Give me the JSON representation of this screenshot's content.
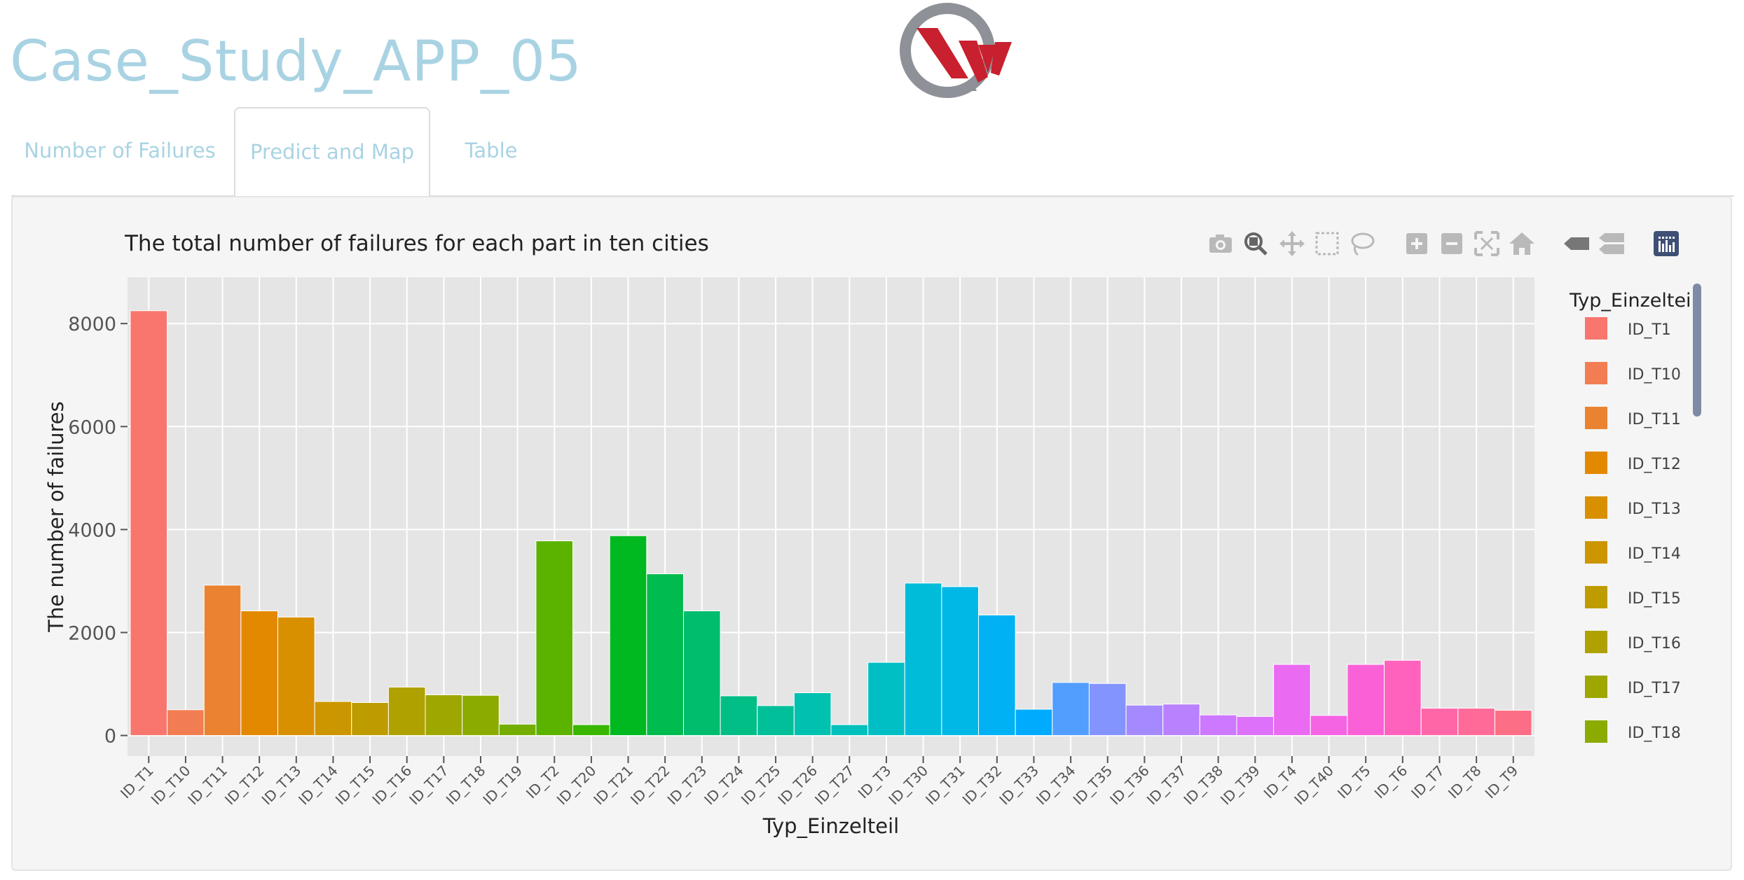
{
  "app": {
    "title": "Case_Study_APP_05"
  },
  "tabs": [
    {
      "label": "Number of Failures",
      "active": false
    },
    {
      "label": "Predict and Map",
      "active": true
    },
    {
      "label": "Table",
      "active": false
    }
  ],
  "modebar": {
    "icons": [
      "camera-icon",
      "zoom-icon",
      "pan-icon",
      "box-select-icon",
      "lasso-icon",
      "zoom-in-icon",
      "zoom-out-icon",
      "autoscale-icon",
      "home-icon",
      "hover-closest-icon",
      "hover-compare-icon",
      "plotly-logo-icon"
    ]
  },
  "colors": {
    "title": "#a9d3e3",
    "plot_bg": "#e5e5e5",
    "panel_bg": "#f5f5f5"
  },
  "chart_data": {
    "type": "bar",
    "title": "The total number of failures for each part in ten cities",
    "xlabel": "Typ_Einzelteil",
    "ylabel": "The number of failures",
    "ylim": [
      -400,
      8900
    ],
    "yticks": [
      0,
      2000,
      4000,
      6000,
      8000
    ],
    "ytick_labels": [
      "0",
      "2000",
      "4000",
      "6000",
      "8000"
    ],
    "grid": true,
    "legend": {
      "title": "Typ_Einzelteil",
      "placement": "right",
      "entries": [
        "ID_T1",
        "ID_T10",
        "ID_T11",
        "ID_T12",
        "ID_T13",
        "ID_T14",
        "ID_T15",
        "ID_T16",
        "ID_T17",
        "ID_T18"
      ]
    },
    "categories": [
      "ID_T1",
      "ID_T10",
      "ID_T11",
      "ID_T12",
      "ID_T13",
      "ID_T14",
      "ID_T15",
      "ID_T16",
      "ID_T17",
      "ID_T18",
      "ID_T19",
      "ID_T2",
      "ID_T20",
      "ID_T21",
      "ID_T22",
      "ID_T23",
      "ID_T24",
      "ID_T25",
      "ID_T26",
      "ID_T27",
      "ID_T3",
      "ID_T30",
      "ID_T31",
      "ID_T32",
      "ID_T33",
      "ID_T34",
      "ID_T35",
      "ID_T36",
      "ID_T37",
      "ID_T38",
      "ID_T39",
      "ID_T4",
      "ID_T40",
      "ID_T5",
      "ID_T6",
      "ID_T7",
      "ID_T8",
      "ID_T9"
    ],
    "values": [
      8250,
      500,
      2920,
      2420,
      2300,
      660,
      640,
      940,
      790,
      780,
      220,
      3780,
      210,
      3880,
      3140,
      2420,
      770,
      580,
      830,
      210,
      1420,
      2960,
      2890,
      2340,
      510,
      1030,
      1010,
      590,
      610,
      400,
      370,
      1380,
      390,
      1380,
      1460,
      530,
      530,
      490
    ],
    "colors": [
      "#F8766D",
      "#F27D52",
      "#EA8331",
      "#E38900",
      "#D89000",
      "#CB9600",
      "#BE9C00",
      "#AFA100",
      "#9EA700",
      "#8BAB00",
      "#74AE00",
      "#5BB300",
      "#39B600",
      "#00B81F",
      "#00BB4E",
      "#00BC6D",
      "#00BE86",
      "#00BF99",
      "#00C0AF",
      "#00C0BC",
      "#00BFC4",
      "#00BCD8",
      "#00B8E5",
      "#00B2F3",
      "#00ABFD",
      "#529EFF",
      "#8494FF",
      "#A58AFF",
      "#BA81FF",
      "#CD79FF",
      "#DE71F9",
      "#EA6AF1",
      "#F564E3",
      "#FB61D7",
      "#FF62BC",
      "#FF66A8",
      "#FF6A98",
      "#FC6E85"
    ]
  }
}
